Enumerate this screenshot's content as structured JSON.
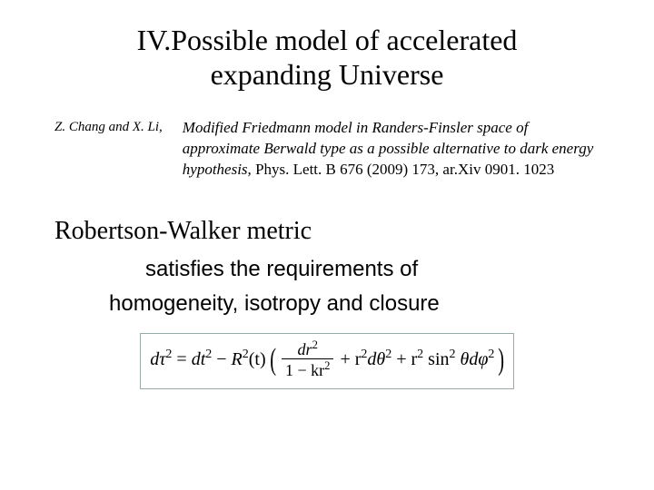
{
  "title_line1": "IV.Possible model of accelerated",
  "title_line2": "expanding Universe",
  "authors": "Z. Chang and X. Li,",
  "citation_italic": "Modified Friedmann model in Randers-Finsler space of approximate Berwald type as a possible alternative to dark energy hypothesis,",
  "citation_rest": " Phys. Lett. B 676 (2009) 173, ar.Xiv 0901. 1023",
  "metric_heading": "Robertson-Walker metric",
  "req_line1": "satisfies the requirements of",
  "req_line2": "homogeneity, isotropy and closure",
  "equation": {
    "lhs": "dτ",
    "eq": " = ",
    "rhs_parts": {
      "dt2": "dt",
      "minus": "−",
      "R": "R",
      "t": "(t)",
      "frac_num": "dr",
      "frac_den_pre": "1 − kr",
      "plus1": " + r",
      "dtheta": "dθ",
      "plus2": " + r",
      "sin": " sin",
      "theta": " θdφ"
    }
  },
  "colors": {
    "background": "#ffffff",
    "text": "#000000",
    "eq_border": "#99aaaa"
  },
  "fonts": {
    "title_size": 32,
    "body_serif": "Times New Roman",
    "body_sans": "Trebuchet MS"
  }
}
